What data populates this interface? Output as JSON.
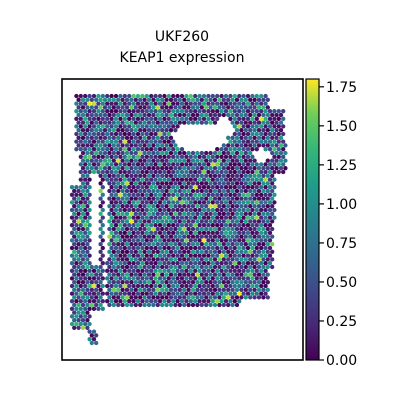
{
  "chart_data": {
    "type": "scatter",
    "title_lines": [
      "UKF260",
      "KEAP1 expression"
    ],
    "xlabel": "",
    "ylabel": "",
    "colorbar": {
      "colormap": "viridis",
      "range": [
        0,
        1.8
      ],
      "ticks": [
        "0.00",
        "0.25",
        "0.50",
        "0.75",
        "1.00",
        "1.25",
        "1.50",
        "1.75"
      ],
      "tick_values": [
        0,
        0.25,
        0.5,
        0.75,
        1.0,
        1.25,
        1.5,
        1.75
      ]
    },
    "spots": {
      "layout": "hexagonal spatial transcriptomics grid",
      "value_range": [
        0,
        1.8
      ],
      "value_distribution": "mostly 0-0.5, fewer 0.75-1.25, sparse up to 1.75"
    },
    "colors": {
      "low": "#440154",
      "mid": "#21918c",
      "high": "#fde725"
    }
  }
}
